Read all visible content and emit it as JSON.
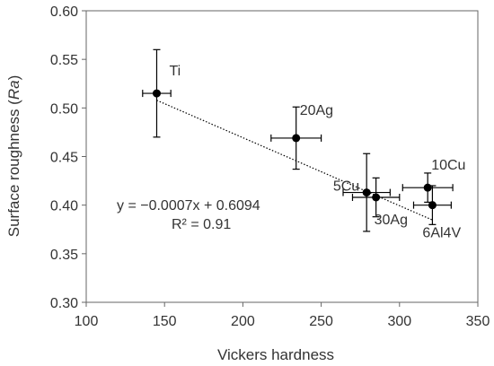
{
  "chart_data": {
    "type": "scatter",
    "title": "",
    "xlabel": "Vickers hardness",
    "ylabel_main": "Surface roughness (",
    "ylabel_italic": "Ra",
    "ylabel_end": ")",
    "xlim": [
      100,
      350
    ],
    "ylim": [
      0.3,
      0.6
    ],
    "x_ticks": [
      100,
      150,
      200,
      250,
      300,
      350
    ],
    "x_tick_labels": [
      "100",
      "150",
      "200",
      "250",
      "300",
      "350"
    ],
    "y_ticks": [
      0.3,
      0.35,
      0.4,
      0.45,
      0.5,
      0.55,
      0.6
    ],
    "y_tick_labels": [
      "0.30",
      "0.35",
      "0.40",
      "0.45",
      "0.50",
      "0.55",
      "0.60"
    ],
    "grid": false,
    "marker_color": "#000000",
    "points": [
      {
        "label": "Ti",
        "x": 145,
        "y": 0.515,
        "x_err": 9,
        "y_err_low": 0.045,
        "y_err_high": 0.045
      },
      {
        "label": "20Ag",
        "x": 234,
        "y": 0.469,
        "x_err": 16,
        "y_err_low": 0.032,
        "y_err_high": 0.032
      },
      {
        "label": "5Cu",
        "x": 279,
        "y": 0.413,
        "x_err": 15,
        "y_err_low": 0.04,
        "y_err_high": 0.04
      },
      {
        "label": "30Ag",
        "x": 285,
        "y": 0.408,
        "x_err": 15,
        "y_err_low": 0.02,
        "y_err_high": 0.02
      },
      {
        "label": "10Cu",
        "x": 318,
        "y": 0.418,
        "x_err": 16,
        "y_err_low": 0.015,
        "y_err_high": 0.015
      },
      {
        "label": "6Al4V",
        "x": 321,
        "y": 0.4,
        "x_err": 12,
        "y_err_low": 0.02,
        "y_err_high": 0.02
      }
    ],
    "trendline": {
      "slope": -0.0007,
      "intercept": 0.6094,
      "x_range": [
        145,
        321
      ],
      "style": "dotted"
    },
    "equation_text": "y = −0.0007x + 0.6094",
    "r2_text": "R² = 0.91"
  }
}
